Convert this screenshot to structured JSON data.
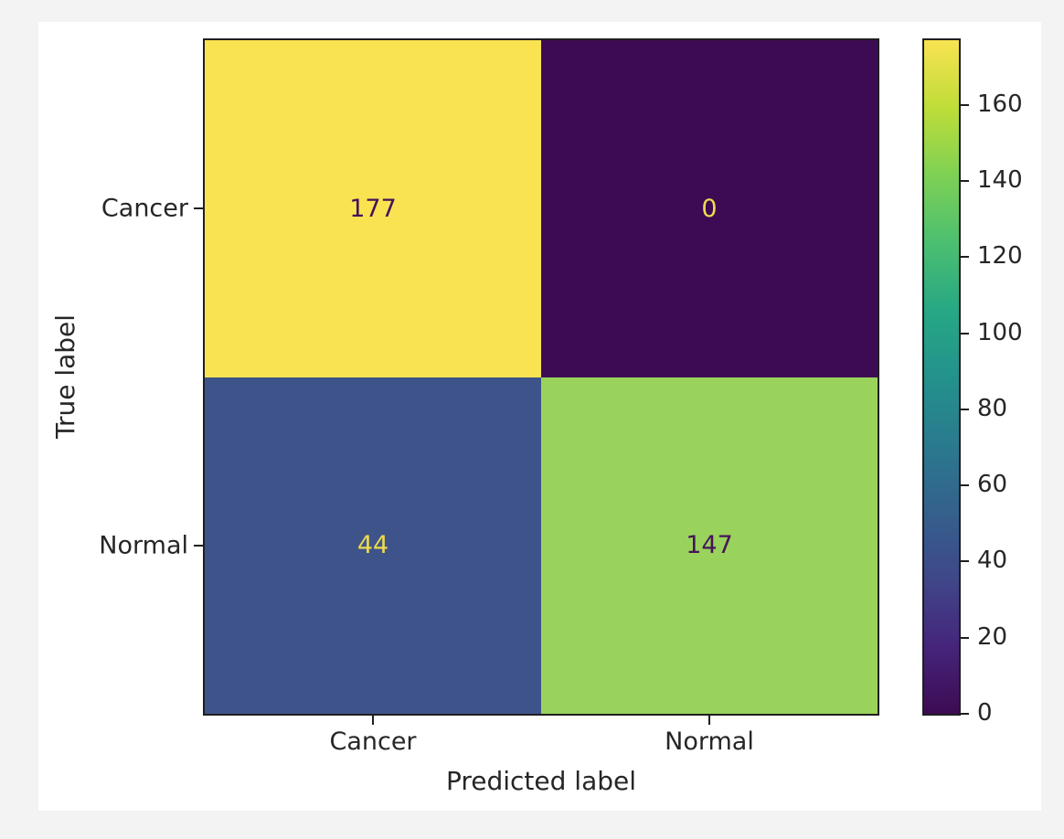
{
  "chart_data": {
    "type": "heatmap",
    "subtype": "confusion-matrix",
    "title": "",
    "xlabel": "Predicted label",
    "ylabel": "True label",
    "x_categories": [
      "Cancer",
      "Normal"
    ],
    "y_categories": [
      "Cancer",
      "Normal"
    ],
    "matrix": [
      [
        177,
        0
      ],
      [
        44,
        147
      ]
    ],
    "vmin": 0,
    "vmax": 177,
    "colormap": "viridis",
    "colorbar_ticks": [
      0,
      20,
      40,
      60,
      80,
      100,
      120,
      140,
      160
    ],
    "colorbar_position": "right",
    "grid": false
  },
  "cells": [
    {
      "row": "Cancer",
      "col": "Cancer",
      "value": 177,
      "bg": "#f9e351",
      "fg": "#44135a"
    },
    {
      "row": "Cancer",
      "col": "Normal",
      "value": 0,
      "bg": "#3d0b54",
      "fg": "#f0db52"
    },
    {
      "row": "Normal",
      "col": "Cancer",
      "value": 44,
      "bg": "#3f538b",
      "fg": "#ecd94f"
    },
    {
      "row": "Normal",
      "col": "Normal",
      "value": 147,
      "bg": "#9ad35c",
      "fg": "#45155a"
    }
  ],
  "colors": {
    "page_background": "#f3f3f4",
    "figure_background": "#ffffff",
    "spine": "#1f1f1f",
    "text": "#262626",
    "viridis_min": "#3d0b54",
    "viridis_max": "#f9e351"
  }
}
